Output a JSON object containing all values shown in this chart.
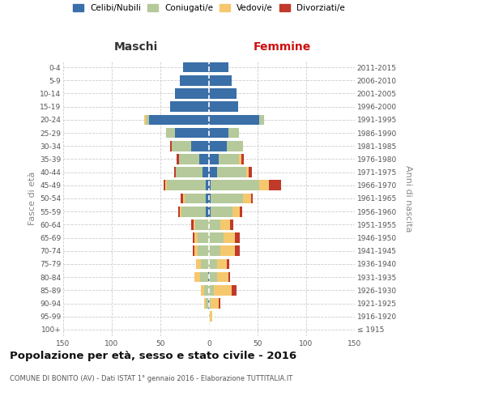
{
  "age_groups": [
    "100+",
    "95-99",
    "90-94",
    "85-89",
    "80-84",
    "75-79",
    "70-74",
    "65-69",
    "60-64",
    "55-59",
    "50-54",
    "45-49",
    "40-44",
    "35-39",
    "30-34",
    "25-29",
    "20-24",
    "15-19",
    "10-14",
    "5-9",
    "0-4"
  ],
  "birth_years": [
    "≤ 1915",
    "1916-1920",
    "1921-1925",
    "1926-1930",
    "1931-1935",
    "1936-1940",
    "1941-1945",
    "1946-1950",
    "1951-1955",
    "1956-1960",
    "1961-1965",
    "1966-1970",
    "1971-1975",
    "1976-1980",
    "1981-1985",
    "1986-1990",
    "1991-1995",
    "1996-2000",
    "2001-2005",
    "2006-2010",
    "2011-2015"
  ],
  "maschi": {
    "celibi": [
      0,
      0,
      1,
      0,
      1,
      0,
      0,
      0,
      0,
      3,
      3,
      3,
      7,
      10,
      18,
      35,
      62,
      40,
      35,
      30,
      27
    ],
    "coniugati": [
      0,
      0,
      2,
      5,
      8,
      8,
      12,
      12,
      14,
      25,
      22,
      40,
      27,
      21,
      20,
      9,
      3,
      0,
      0,
      0,
      0
    ],
    "vedovi": [
      0,
      0,
      2,
      3,
      6,
      5,
      3,
      3,
      2,
      2,
      2,
      2,
      0,
      0,
      0,
      0,
      2,
      0,
      0,
      0,
      0
    ],
    "divorziati": [
      0,
      0,
      0,
      0,
      0,
      0,
      2,
      2,
      2,
      2,
      2,
      2,
      2,
      2,
      2,
      0,
      0,
      0,
      0,
      0,
      0
    ]
  },
  "femmine": {
    "nubili": [
      0,
      0,
      0,
      0,
      0,
      0,
      0,
      0,
      0,
      2,
      2,
      2,
      8,
      10,
      18,
      20,
      52,
      30,
      28,
      23,
      20
    ],
    "coniugate": [
      0,
      1,
      2,
      5,
      8,
      8,
      12,
      15,
      12,
      22,
      33,
      50,
      30,
      21,
      17,
      11,
      5,
      0,
      0,
      0,
      0
    ],
    "vedove": [
      0,
      2,
      8,
      18,
      12,
      10,
      15,
      12,
      10,
      8,
      8,
      10,
      3,
      2,
      0,
      0,
      0,
      0,
      0,
      0,
      0
    ],
    "divorziate": [
      0,
      0,
      2,
      5,
      2,
      3,
      5,
      5,
      3,
      2,
      2,
      12,
      3,
      3,
      0,
      0,
      0,
      0,
      0,
      0,
      0
    ]
  },
  "colors": {
    "celibi": "#3a6fa8",
    "coniugati": "#b5c99a",
    "vedovi": "#f5c86e",
    "divorziati": "#c0392b"
  },
  "legend_labels": [
    "Celibi/Nubili",
    "Coniugati/e",
    "Vedovi/e",
    "Divorziati/e"
  ],
  "title": "Popolazione per età, sesso e stato civile - 2016",
  "subtitle": "COMUNE DI BONITO (AV) - Dati ISTAT 1° gennaio 2016 - Elaborazione TUTTITALIA.IT",
  "label_maschi": "Maschi",
  "label_femmine": "Femmine",
  "ylabel_left": "Fasce di età",
  "ylabel_right": "Anni di nascita",
  "xlim": 150,
  "bg": "#ffffff",
  "grid_color": "#cccccc"
}
